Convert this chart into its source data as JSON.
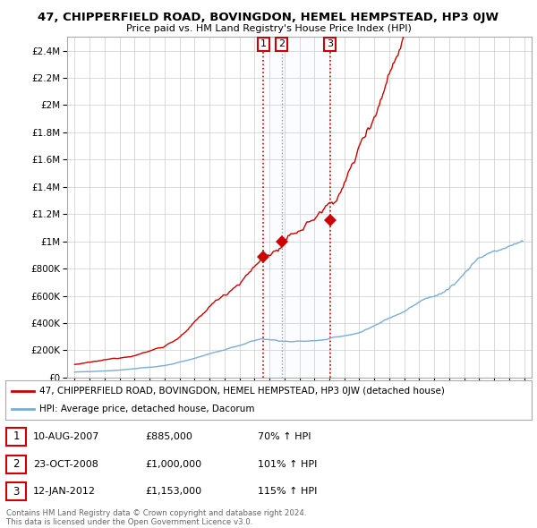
{
  "title": "47, CHIPPERFIELD ROAD, BOVINGDON, HEMEL HEMPSTEAD, HP3 0JW",
  "subtitle": "Price paid vs. HM Land Registry's House Price Index (HPI)",
  "ylabel_ticks": [
    "£0",
    "£200K",
    "£400K",
    "£600K",
    "£800K",
    "£1M",
    "£1.2M",
    "£1.4M",
    "£1.6M",
    "£1.8M",
    "£2M",
    "£2.2M",
    "£2.4M"
  ],
  "ytick_vals": [
    0,
    200000,
    400000,
    600000,
    800000,
    1000000,
    1200000,
    1400000,
    1600000,
    1800000,
    2000000,
    2200000,
    2400000
  ],
  "ylim": [
    0,
    2500000
  ],
  "sale_color": "#cc0000",
  "hpi_color": "#7aadd4",
  "shade_color": "#ddeeff",
  "sales": [
    {
      "date_year": 2007.6,
      "price": 885000,
      "label": "1"
    },
    {
      "date_year": 2008.82,
      "price": 1000000,
      "label": "2"
    },
    {
      "date_year": 2012.04,
      "price": 1153000,
      "label": "3"
    }
  ],
  "legend_line1": "47, CHIPPERFIELD ROAD, BOVINGDON, HEMEL HEMPSTEAD, HP3 0JW (detached house)",
  "legend_line2": "HPI: Average price, detached house, Dacorum",
  "table_entries": [
    {
      "num": "1",
      "date": "10-AUG-2007",
      "price": "£885,000",
      "pct": "70% ↑ HPI"
    },
    {
      "num": "2",
      "date": "23-OCT-2008",
      "price": "£1,000,000",
      "pct": "101% ↑ HPI"
    },
    {
      "num": "3",
      "date": "12-JAN-2012",
      "price": "£1,153,000",
      "pct": "115% ↑ HPI"
    }
  ],
  "footnote": "Contains HM Land Registry data © Crown copyright and database right 2024.\nThis data is licensed under the Open Government Licence v3.0.",
  "background_color": "#ffffff",
  "grid_color": "#cccccc",
  "title_fontsize": 9.5,
  "subtitle_fontsize": 8.0
}
